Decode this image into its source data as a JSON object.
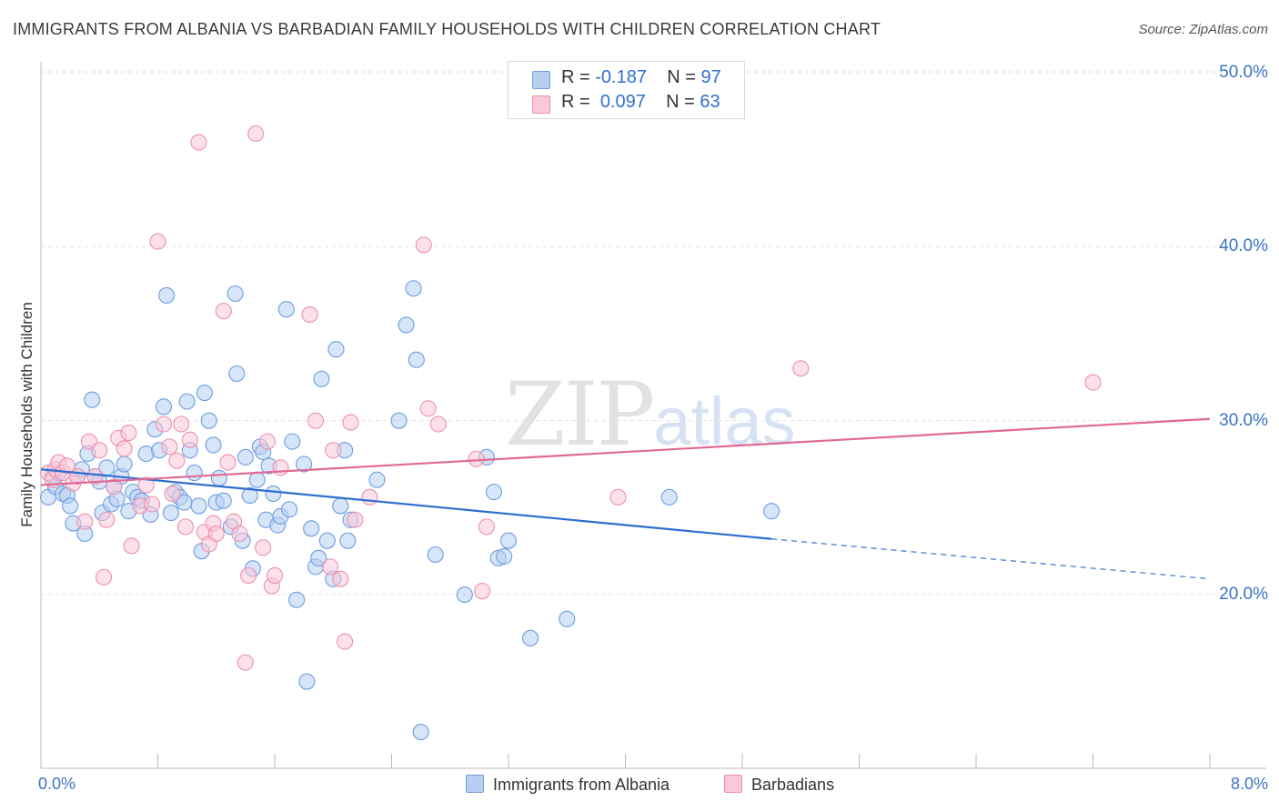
{
  "title": "IMMIGRANTS FROM ALBANIA VS BARBADIAN FAMILY HOUSEHOLDS WITH CHILDREN CORRELATION CHART",
  "source": "Source: ZipAtlas.com",
  "watermark": {
    "zip": "ZIP",
    "atlas": "atlas"
  },
  "legend_top": {
    "rows": [
      {
        "r_label": "R =",
        "r_value": "-0.187",
        "n_label": "N =",
        "n_value": "97",
        "color": "#a9c8f0"
      },
      {
        "r_label": "R =",
        "r_value": "0.097",
        "n_label": "N =",
        "n_value": "63",
        "color": "#f6b8cc"
      }
    ]
  },
  "chart_data": {
    "type": "scatter",
    "title": "IMMIGRANTS FROM ALBANIA VS BARBADIAN FAMILY HOUSEHOLDS WITH CHILDREN CORRELATION CHART",
    "xlabel": "",
    "ylabel": "Family Households with Children",
    "xlim": [
      0,
      8
    ],
    "ylim": [
      10,
      51
    ],
    "x_tick_labels": [
      "0.0%",
      "8.0%"
    ],
    "y_ticks": [
      20,
      30,
      40,
      50
    ],
    "y_tick_labels": [
      "20.0%",
      "30.0%",
      "40.0%",
      "50.0%"
    ],
    "grid": true,
    "legend_placement": "bottom",
    "series": [
      {
        "name": "Immigrants from Albania",
        "color": "#6d9de0",
        "fill": "#b7d0f2",
        "trend": {
          "x0": 0,
          "y0": 27.2,
          "x1": 5.0,
          "y1": 23.2,
          "dashed_to_x": 8.0,
          "dashed_to_y": 20.9
        },
        "points": [
          [
            0.05,
            25.6
          ],
          [
            0.08,
            26.8
          ],
          [
            0.1,
            26.2
          ],
          [
            0.12,
            27.0
          ],
          [
            0.15,
            25.8
          ],
          [
            0.18,
            25.7
          ],
          [
            0.2,
            25.1
          ],
          [
            0.22,
            24.1
          ],
          [
            0.25,
            26.8
          ],
          [
            0.28,
            27.2
          ],
          [
            0.3,
            23.5
          ],
          [
            0.32,
            28.1
          ],
          [
            0.35,
            31.2
          ],
          [
            0.37,
            26.8
          ],
          [
            0.4,
            26.5
          ],
          [
            0.42,
            24.7
          ],
          [
            0.45,
            27.3
          ],
          [
            0.48,
            25.2
          ],
          [
            0.5,
            26.2
          ],
          [
            0.52,
            25.5
          ],
          [
            0.55,
            26.8
          ],
          [
            0.57,
            27.5
          ],
          [
            0.6,
            24.8
          ],
          [
            0.63,
            25.9
          ],
          [
            0.66,
            25.6
          ],
          [
            0.69,
            25.4
          ],
          [
            0.72,
            28.1
          ],
          [
            0.75,
            24.6
          ],
          [
            0.78,
            29.5
          ],
          [
            0.81,
            28.3
          ],
          [
            0.84,
            30.8
          ],
          [
            0.86,
            37.2
          ],
          [
            0.89,
            24.7
          ],
          [
            0.92,
            25.9
          ],
          [
            0.95,
            25.6
          ],
          [
            0.98,
            25.3
          ],
          [
            1.0,
            31.1
          ],
          [
            1.02,
            28.3
          ],
          [
            1.05,
            27.0
          ],
          [
            1.08,
            25.1
          ],
          [
            1.1,
            22.5
          ],
          [
            1.12,
            31.6
          ],
          [
            1.15,
            30.0
          ],
          [
            1.18,
            28.6
          ],
          [
            1.2,
            25.3
          ],
          [
            1.22,
            26.7
          ],
          [
            1.25,
            25.4
          ],
          [
            1.3,
            23.9
          ],
          [
            1.33,
            37.3
          ],
          [
            1.34,
            32.7
          ],
          [
            1.38,
            23.1
          ],
          [
            1.4,
            27.9
          ],
          [
            1.43,
            25.7
          ],
          [
            1.45,
            21.5
          ],
          [
            1.48,
            26.6
          ],
          [
            1.5,
            28.5
          ],
          [
            1.52,
            28.2
          ],
          [
            1.54,
            24.3
          ],
          [
            1.56,
            27.4
          ],
          [
            1.59,
            25.8
          ],
          [
            1.62,
            24.0
          ],
          [
            1.64,
            24.5
          ],
          [
            1.68,
            36.4
          ],
          [
            1.7,
            24.9
          ],
          [
            1.72,
            28.8
          ],
          [
            1.75,
            19.7
          ],
          [
            1.8,
            27.5
          ],
          [
            1.82,
            15.0
          ],
          [
            1.85,
            23.8
          ],
          [
            1.88,
            21.6
          ],
          [
            1.9,
            22.1
          ],
          [
            1.92,
            32.4
          ],
          [
            1.96,
            23.1
          ],
          [
            2.0,
            20.9
          ],
          [
            2.02,
            34.1
          ],
          [
            2.05,
            25.1
          ],
          [
            2.08,
            28.3
          ],
          [
            2.1,
            23.1
          ],
          [
            2.12,
            24.3
          ],
          [
            2.3,
            26.6
          ],
          [
            2.45,
            30.0
          ],
          [
            2.5,
            35.5
          ],
          [
            2.55,
            37.6
          ],
          [
            2.57,
            33.5
          ],
          [
            2.6,
            12.1
          ],
          [
            2.7,
            22.3
          ],
          [
            2.9,
            20.0
          ],
          [
            3.05,
            27.9
          ],
          [
            3.1,
            25.9
          ],
          [
            3.13,
            22.1
          ],
          [
            3.17,
            22.2
          ],
          [
            3.2,
            23.1
          ],
          [
            3.35,
            17.5
          ],
          [
            3.6,
            18.6
          ],
          [
            4.3,
            25.6
          ],
          [
            5.0,
            24.8
          ]
        ]
      },
      {
        "name": "Barbadians",
        "color": "#ec90ae",
        "fill": "#f9c9d8",
        "trend": {
          "x0": 0,
          "y0": 26.3,
          "x1": 8.0,
          "y1": 30.1
        },
        "points": [
          [
            0.05,
            27.0
          ],
          [
            0.08,
            26.6
          ],
          [
            0.1,
            27.2
          ],
          [
            0.12,
            27.6
          ],
          [
            0.15,
            27.0
          ],
          [
            0.18,
            27.4
          ],
          [
            0.22,
            26.4
          ],
          [
            0.25,
            26.8
          ],
          [
            0.3,
            24.2
          ],
          [
            0.33,
            28.8
          ],
          [
            0.37,
            26.8
          ],
          [
            0.4,
            28.3
          ],
          [
            0.43,
            21.0
          ],
          [
            0.45,
            24.3
          ],
          [
            0.5,
            26.2
          ],
          [
            0.53,
            29.0
          ],
          [
            0.57,
            28.4
          ],
          [
            0.6,
            29.3
          ],
          [
            0.62,
            22.8
          ],
          [
            0.68,
            25.1
          ],
          [
            0.72,
            26.3
          ],
          [
            0.76,
            25.2
          ],
          [
            0.8,
            40.3
          ],
          [
            0.84,
            29.8
          ],
          [
            0.88,
            28.5
          ],
          [
            0.9,
            25.8
          ],
          [
            0.93,
            27.7
          ],
          [
            0.96,
            29.8
          ],
          [
            0.99,
            23.9
          ],
          [
            1.02,
            28.9
          ],
          [
            1.08,
            46.0
          ],
          [
            1.12,
            23.6
          ],
          [
            1.15,
            22.9
          ],
          [
            1.18,
            24.1
          ],
          [
            1.2,
            23.5
          ],
          [
            1.25,
            36.3
          ],
          [
            1.28,
            27.6
          ],
          [
            1.32,
            24.2
          ],
          [
            1.36,
            23.5
          ],
          [
            1.4,
            16.1
          ],
          [
            1.42,
            21.1
          ],
          [
            1.47,
            46.5
          ],
          [
            1.52,
            22.7
          ],
          [
            1.55,
            28.8
          ],
          [
            1.58,
            20.5
          ],
          [
            1.6,
            21.1
          ],
          [
            1.64,
            27.3
          ],
          [
            1.84,
            36.1
          ],
          [
            1.88,
            30.0
          ],
          [
            1.98,
            21.6
          ],
          [
            2.0,
            28.3
          ],
          [
            2.05,
            20.9
          ],
          [
            2.08,
            17.3
          ],
          [
            2.12,
            29.9
          ],
          [
            2.15,
            24.3
          ],
          [
            2.25,
            25.6
          ],
          [
            2.62,
            40.1
          ],
          [
            2.65,
            30.7
          ],
          [
            2.72,
            29.8
          ],
          [
            2.98,
            27.8
          ],
          [
            3.02,
            20.2
          ],
          [
            3.05,
            23.9
          ],
          [
            3.95,
            25.6
          ],
          [
            5.2,
            33.0
          ],
          [
            7.2,
            32.2
          ]
        ]
      }
    ]
  }
}
